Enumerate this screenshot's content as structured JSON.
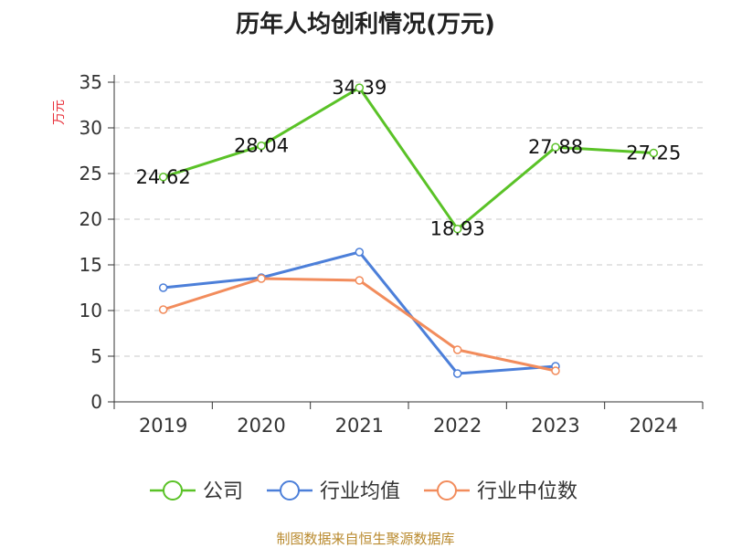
{
  "chart_data": {
    "type": "line",
    "title": "历年人均创利情况(万元)",
    "ylabel": "万元",
    "categories": [
      "2019",
      "2020",
      "2021",
      "2022",
      "2023",
      "2024"
    ],
    "ylim": [
      0,
      35
    ],
    "yticks": [
      "0",
      "5",
      "10",
      "15",
      "20",
      "25",
      "30",
      "35"
    ],
    "grid": true,
    "legend_position": "bottom",
    "series": [
      {
        "name": "公司",
        "color": "#5ac227",
        "values": [
          24.62,
          28.04,
          34.39,
          18.93,
          27.88,
          27.25
        ],
        "labels": [
          "24.62",
          "28.04",
          "34.39",
          "18.93",
          "27.88",
          "27.25"
        ]
      },
      {
        "name": "行业均值",
        "color": "#4c7fd9",
        "values": [
          12.5,
          13.6,
          16.4,
          3.1,
          3.9,
          null
        ]
      },
      {
        "name": "行业中位数",
        "color": "#f28c5c",
        "values": [
          10.1,
          13.5,
          13.3,
          5.7,
          3.4,
          null
        ]
      }
    ]
  },
  "source": "制图数据来自恒生聚源数据库"
}
